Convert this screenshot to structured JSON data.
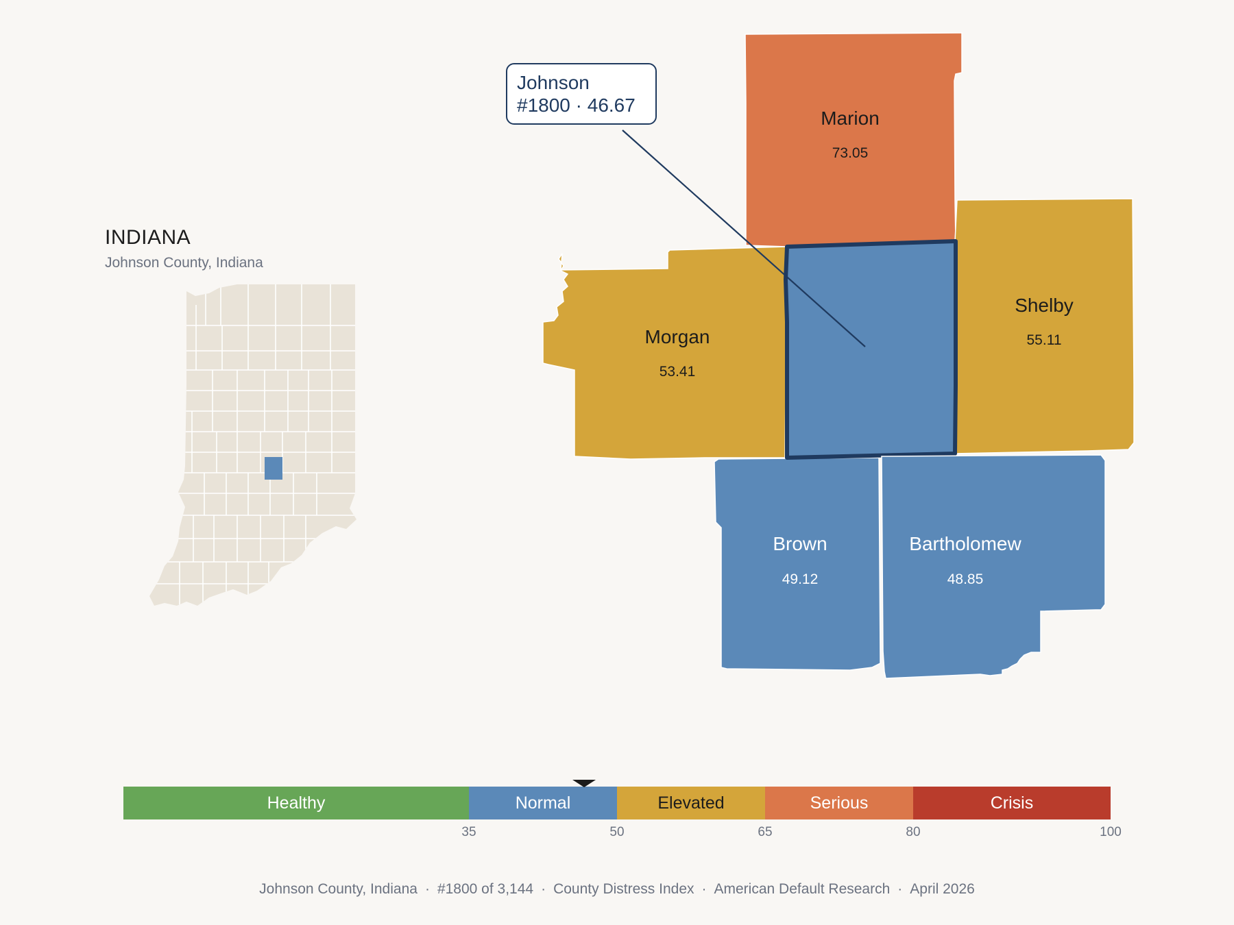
{
  "state": {
    "title": "INDIANA",
    "subtitle": "Johnson County, Indiana"
  },
  "colors": {
    "background": "#f9f7f4",
    "healthy": "#67a657",
    "normal": "#5b89b8",
    "elevated": "#d4a53a",
    "serious": "#db774a",
    "crisis": "#b93c2c",
    "inset_county": "#e9e3d8",
    "highlight_border": "#1f3a5f"
  },
  "callout": {
    "name": "Johnson",
    "detail": "#1800 · 46.67"
  },
  "counties": [
    {
      "id": "marion",
      "name": "Marion",
      "value": "73.05",
      "category": "serious"
    },
    {
      "id": "morgan",
      "name": "Morgan",
      "value": "53.41",
      "category": "elevated"
    },
    {
      "id": "shelby",
      "name": "Shelby",
      "value": "55.11",
      "category": "elevated"
    },
    {
      "id": "johnson",
      "name": "Johnson",
      "value": "46.67",
      "category": "normal",
      "selected": true
    },
    {
      "id": "brown",
      "name": "Brown",
      "value": "49.12",
      "category": "normal"
    },
    {
      "id": "bartholomew",
      "name": "Bartholomew",
      "value": "48.85",
      "category": "normal"
    }
  ],
  "legend": {
    "min": 0,
    "max": 100,
    "marker_value": 46.67,
    "segments": [
      {
        "label": "Healthy",
        "from": 0,
        "to": 35,
        "color": "#67a657"
      },
      {
        "label": "Normal",
        "from": 35,
        "to": 50,
        "color": "#5b89b8"
      },
      {
        "label": "Elevated",
        "from": 50,
        "to": 65,
        "color": "#d4a53a"
      },
      {
        "label": "Serious",
        "from": 65,
        "to": 80,
        "color": "#db774a"
      },
      {
        "label": "Crisis",
        "from": 80,
        "to": 100,
        "color": "#b93c2c"
      }
    ],
    "ticks": [
      "35",
      "50",
      "65",
      "80",
      "100"
    ]
  },
  "footer": {
    "location": "Johnson County, Indiana",
    "rank": "#1800 of 3,144",
    "index": "County Distress Index",
    "source": "American Default Research",
    "date": "April 2026"
  }
}
